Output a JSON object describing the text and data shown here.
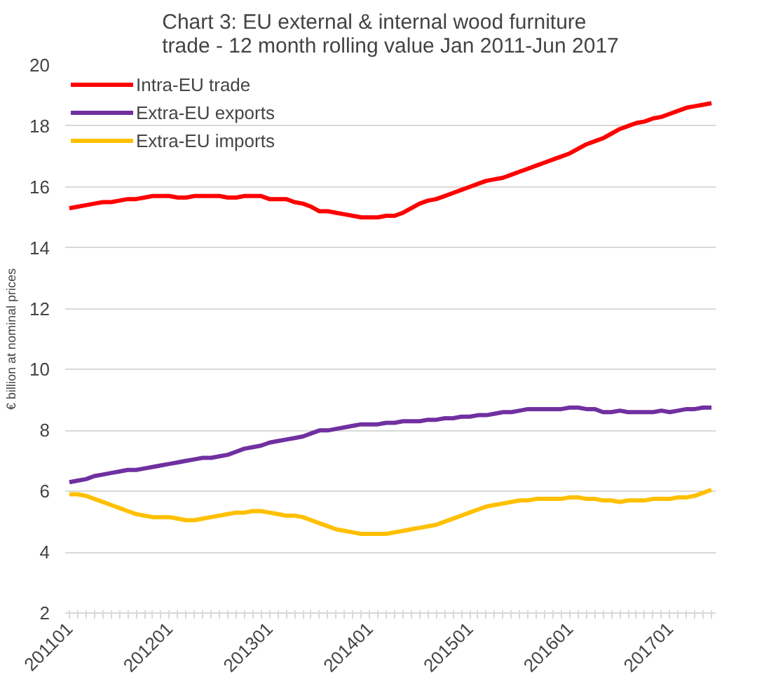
{
  "chart_data": {
    "type": "line",
    "title": "Chart 3: EU external & internal wood furniture\ntrade - 12 month rolling value Jan 2011-Jun 2017",
    "ylabel": "€ billion at nominal prices",
    "categories": [
      "201101",
      null,
      null,
      null,
      null,
      null,
      null,
      null,
      null,
      null,
      null,
      null,
      "201201",
      null,
      null,
      null,
      null,
      null,
      null,
      null,
      null,
      null,
      null,
      null,
      "201301",
      null,
      null,
      null,
      null,
      null,
      null,
      null,
      null,
      null,
      null,
      null,
      "201401",
      null,
      null,
      null,
      null,
      null,
      null,
      null,
      null,
      null,
      null,
      null,
      "201501",
      null,
      null,
      null,
      null,
      null,
      null,
      null,
      null,
      null,
      null,
      null,
      "201601",
      null,
      null,
      null,
      null,
      null,
      null,
      null,
      null,
      null,
      null,
      null,
      "201701",
      null,
      null,
      null,
      null,
      null
    ],
    "series": [
      {
        "name": "Intra-EU trade",
        "color": "#ff0000",
        "values": [
          15.3,
          15.35,
          15.4,
          15.45,
          15.5,
          15.5,
          15.55,
          15.6,
          15.6,
          15.65,
          15.7,
          15.7,
          15.7,
          15.65,
          15.65,
          15.7,
          15.7,
          15.7,
          15.7,
          15.65,
          15.65,
          15.7,
          15.7,
          15.7,
          15.6,
          15.6,
          15.6,
          15.5,
          15.45,
          15.35,
          15.2,
          15.2,
          15.15,
          15.1,
          15.05,
          15.0,
          15.0,
          15.0,
          15.05,
          15.05,
          15.15,
          15.3,
          15.45,
          15.55,
          15.6,
          15.7,
          15.8,
          15.9,
          16.0,
          16.1,
          16.2,
          16.25,
          16.3,
          16.4,
          16.5,
          16.6,
          16.7,
          16.8,
          16.9,
          17.0,
          17.1,
          17.25,
          17.4,
          17.5,
          17.6,
          17.75,
          17.9,
          18.0,
          18.1,
          18.15,
          18.25,
          18.3,
          18.4,
          18.5,
          18.6,
          18.65,
          18.7,
          18.75
        ]
      },
      {
        "name": "Extra-EU exports",
        "color": "#7030a0",
        "values": [
          6.3,
          6.35,
          6.4,
          6.5,
          6.55,
          6.6,
          6.65,
          6.7,
          6.7,
          6.75,
          6.8,
          6.85,
          6.9,
          6.95,
          7.0,
          7.05,
          7.1,
          7.1,
          7.15,
          7.2,
          7.3,
          7.4,
          7.45,
          7.5,
          7.6,
          7.65,
          7.7,
          7.75,
          7.8,
          7.9,
          8.0,
          8.0,
          8.05,
          8.1,
          8.15,
          8.2,
          8.2,
          8.2,
          8.25,
          8.25,
          8.3,
          8.3,
          8.3,
          8.35,
          8.35,
          8.4,
          8.4,
          8.45,
          8.45,
          8.5,
          8.5,
          8.55,
          8.6,
          8.6,
          8.65,
          8.7,
          8.7,
          8.7,
          8.7,
          8.7,
          8.75,
          8.75,
          8.7,
          8.7,
          8.6,
          8.6,
          8.65,
          8.6,
          8.6,
          8.6,
          8.6,
          8.65,
          8.6,
          8.65,
          8.7,
          8.7,
          8.75,
          8.75
        ]
      },
      {
        "name": "Extra-EU imports",
        "color": "#ffc000",
        "values": [
          5.9,
          5.9,
          5.85,
          5.75,
          5.65,
          5.55,
          5.45,
          5.35,
          5.25,
          5.2,
          5.15,
          5.15,
          5.15,
          5.1,
          5.05,
          5.05,
          5.1,
          5.15,
          5.2,
          5.25,
          5.3,
          5.3,
          5.35,
          5.35,
          5.3,
          5.25,
          5.2,
          5.2,
          5.15,
          5.05,
          4.95,
          4.85,
          4.75,
          4.7,
          4.65,
          4.6,
          4.6,
          4.6,
          4.6,
          4.65,
          4.7,
          4.75,
          4.8,
          4.85,
          4.9,
          5.0,
          5.1,
          5.2,
          5.3,
          5.4,
          5.5,
          5.55,
          5.6,
          5.65,
          5.7,
          5.7,
          5.75,
          5.75,
          5.75,
          5.75,
          5.8,
          5.8,
          5.75,
          5.75,
          5.7,
          5.7,
          5.65,
          5.7,
          5.7,
          5.7,
          5.75,
          5.75,
          5.75,
          5.8,
          5.8,
          5.85,
          5.95,
          6.05
        ]
      }
    ],
    "ylim": [
      2,
      20
    ],
    "yticks": [
      2,
      4,
      6,
      8,
      10,
      12,
      14,
      16,
      18,
      20
    ],
    "grid": "y",
    "legend": "top left",
    "marker": "none",
    "line_style": "solid"
  }
}
